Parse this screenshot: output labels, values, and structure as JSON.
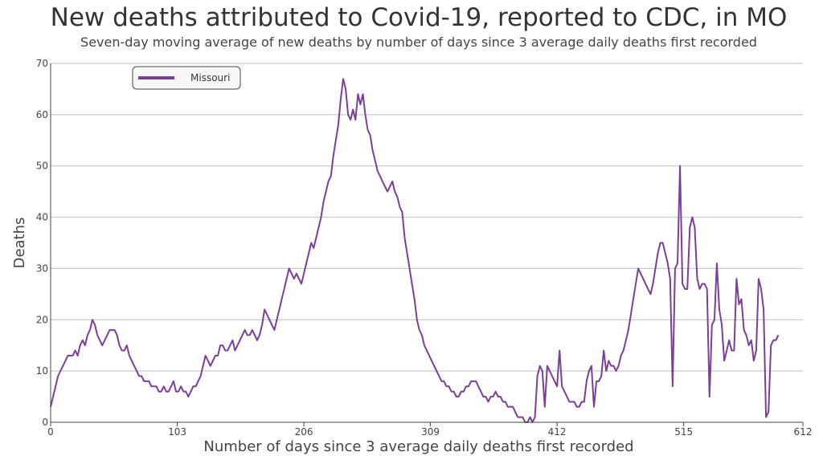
{
  "colors": {
    "series": "#7b3f98",
    "grid": "#bdbdbd",
    "axis": "#444444"
  },
  "chart_data": {
    "type": "line",
    "title": "New deaths attributed to Covid-19, reported to CDC, in MO",
    "subtitle": "Seven-day moving average of new deaths by number of days since 3 average daily deaths first recorded",
    "xlabel": "Number of days since 3 average daily deaths first recorded",
    "ylabel": "Deaths",
    "xlim": [
      0,
      612
    ],
    "ylim": [
      0,
      70
    ],
    "x_ticks": [
      0,
      103,
      206,
      309,
      412,
      515,
      612
    ],
    "y_ticks": [
      0,
      10,
      20,
      30,
      40,
      50,
      60,
      70
    ],
    "grid": true,
    "legend_position": "top-left",
    "series": [
      {
        "name": "Missouri",
        "points": [
          [
            0,
            3
          ],
          [
            2,
            5
          ],
          [
            4,
            7
          ],
          [
            6,
            9
          ],
          [
            8,
            10
          ],
          [
            10,
            11
          ],
          [
            12,
            12
          ],
          [
            14,
            13
          ],
          [
            16,
            13
          ],
          [
            18,
            13
          ],
          [
            20,
            14
          ],
          [
            22,
            13
          ],
          [
            24,
            15
          ],
          [
            26,
            16
          ],
          [
            28,
            15
          ],
          [
            30,
            17
          ],
          [
            32,
            18
          ],
          [
            34,
            20
          ],
          [
            36,
            19
          ],
          [
            38,
            17
          ],
          [
            40,
            16
          ],
          [
            42,
            15
          ],
          [
            44,
            16
          ],
          [
            46,
            17
          ],
          [
            48,
            18
          ],
          [
            50,
            18
          ],
          [
            52,
            18
          ],
          [
            54,
            17
          ],
          [
            56,
            15
          ],
          [
            58,
            14
          ],
          [
            60,
            14
          ],
          [
            62,
            15
          ],
          [
            64,
            13
          ],
          [
            66,
            12
          ],
          [
            68,
            11
          ],
          [
            70,
            10
          ],
          [
            72,
            9
          ],
          [
            74,
            9
          ],
          [
            76,
            8
          ],
          [
            78,
            8
          ],
          [
            80,
            8
          ],
          [
            82,
            7
          ],
          [
            84,
            7
          ],
          [
            86,
            7
          ],
          [
            88,
            6
          ],
          [
            90,
            6
          ],
          [
            92,
            7
          ],
          [
            94,
            6
          ],
          [
            96,
            6
          ],
          [
            98,
            7
          ],
          [
            100,
            8
          ],
          [
            102,
            6
          ],
          [
            104,
            6
          ],
          [
            106,
            7
          ],
          [
            108,
            6
          ],
          [
            110,
            6
          ],
          [
            112,
            5
          ],
          [
            114,
            6
          ],
          [
            116,
            7
          ],
          [
            118,
            7
          ],
          [
            120,
            8
          ],
          [
            122,
            9
          ],
          [
            124,
            11
          ],
          [
            126,
            13
          ],
          [
            128,
            12
          ],
          [
            130,
            11
          ],
          [
            132,
            12
          ],
          [
            134,
            13
          ],
          [
            136,
            13
          ],
          [
            138,
            15
          ],
          [
            140,
            15
          ],
          [
            142,
            14
          ],
          [
            144,
            14
          ],
          [
            146,
            15
          ],
          [
            148,
            16
          ],
          [
            150,
            14
          ],
          [
            152,
            15
          ],
          [
            154,
            16
          ],
          [
            156,
            17
          ],
          [
            158,
            18
          ],
          [
            160,
            17
          ],
          [
            162,
            17
          ],
          [
            164,
            18
          ],
          [
            166,
            17
          ],
          [
            168,
            16
          ],
          [
            170,
            17
          ],
          [
            172,
            19
          ],
          [
            174,
            22
          ],
          [
            176,
            21
          ],
          [
            178,
            20
          ],
          [
            180,
            19
          ],
          [
            182,
            18
          ],
          [
            184,
            20
          ],
          [
            186,
            22
          ],
          [
            188,
            24
          ],
          [
            190,
            26
          ],
          [
            192,
            28
          ],
          [
            194,
            30
          ],
          [
            196,
            29
          ],
          [
            198,
            28
          ],
          [
            200,
            29
          ],
          [
            202,
            28
          ],
          [
            204,
            27
          ],
          [
            206,
            29
          ],
          [
            208,
            31
          ],
          [
            210,
            33
          ],
          [
            212,
            35
          ],
          [
            214,
            34
          ],
          [
            216,
            36
          ],
          [
            218,
            38
          ],
          [
            220,
            40
          ],
          [
            222,
            43
          ],
          [
            224,
            45
          ],
          [
            226,
            47
          ],
          [
            228,
            48
          ],
          [
            230,
            52
          ],
          [
            232,
            55
          ],
          [
            234,
            58
          ],
          [
            236,
            63
          ],
          [
            238,
            67
          ],
          [
            240,
            65
          ],
          [
            242,
            60
          ],
          [
            244,
            59
          ],
          [
            246,
            61
          ],
          [
            248,
            59
          ],
          [
            250,
            64
          ],
          [
            252,
            62
          ],
          [
            254,
            64
          ],
          [
            256,
            60
          ],
          [
            258,
            57
          ],
          [
            260,
            56
          ],
          [
            262,
            53
          ],
          [
            264,
            51
          ],
          [
            266,
            49
          ],
          [
            268,
            48
          ],
          [
            270,
            47
          ],
          [
            272,
            46
          ],
          [
            274,
            45
          ],
          [
            276,
            46
          ],
          [
            278,
            47
          ],
          [
            280,
            45
          ],
          [
            282,
            44
          ],
          [
            284,
            42
          ],
          [
            286,
            41
          ],
          [
            288,
            36
          ],
          [
            290,
            33
          ],
          [
            292,
            30
          ],
          [
            294,
            27
          ],
          [
            296,
            24
          ],
          [
            298,
            20
          ],
          [
            300,
            18
          ],
          [
            302,
            17
          ],
          [
            304,
            15
          ],
          [
            306,
            14
          ],
          [
            308,
            13
          ],
          [
            310,
            12
          ],
          [
            312,
            11
          ],
          [
            314,
            10
          ],
          [
            316,
            9
          ],
          [
            318,
            8
          ],
          [
            320,
            8
          ],
          [
            322,
            7
          ],
          [
            324,
            7
          ],
          [
            326,
            6
          ],
          [
            328,
            6
          ],
          [
            330,
            5
          ],
          [
            332,
            5
          ],
          [
            334,
            6
          ],
          [
            336,
            6
          ],
          [
            338,
            7
          ],
          [
            340,
            7
          ],
          [
            342,
            8
          ],
          [
            344,
            8
          ],
          [
            346,
            8
          ],
          [
            348,
            7
          ],
          [
            350,
            6
          ],
          [
            352,
            5
          ],
          [
            354,
            5
          ],
          [
            356,
            4
          ],
          [
            358,
            5
          ],
          [
            360,
            5
          ],
          [
            362,
            6
          ],
          [
            364,
            5
          ],
          [
            366,
            5
          ],
          [
            368,
            4
          ],
          [
            370,
            4
          ],
          [
            372,
            3
          ],
          [
            374,
            3
          ],
          [
            376,
            3
          ],
          [
            378,
            2
          ],
          [
            380,
            1
          ],
          [
            382,
            1
          ],
          [
            384,
            1
          ],
          [
            386,
            0
          ],
          [
            388,
            0
          ],
          [
            390,
            1
          ],
          [
            392,
            0
          ],
          [
            394,
            1
          ],
          [
            396,
            9
          ],
          [
            398,
            11
          ],
          [
            400,
            10
          ],
          [
            402,
            3
          ],
          [
            404,
            11
          ],
          [
            406,
            10
          ],
          [
            408,
            9
          ],
          [
            410,
            8
          ],
          [
            412,
            7
          ],
          [
            414,
            14
          ],
          [
            416,
            7
          ],
          [
            418,
            6
          ],
          [
            420,
            5
          ],
          [
            422,
            4
          ],
          [
            424,
            4
          ],
          [
            426,
            4
          ],
          [
            428,
            3
          ],
          [
            430,
            3
          ],
          [
            432,
            4
          ],
          [
            434,
            4
          ],
          [
            436,
            8
          ],
          [
            438,
            10
          ],
          [
            440,
            11
          ],
          [
            442,
            3
          ],
          [
            444,
            8
          ],
          [
            446,
            8
          ],
          [
            448,
            9
          ],
          [
            450,
            14
          ],
          [
            452,
            10
          ],
          [
            454,
            12
          ],
          [
            456,
            11
          ],
          [
            458,
            11
          ],
          [
            460,
            10
          ],
          [
            462,
            11
          ],
          [
            464,
            13
          ],
          [
            466,
            14
          ],
          [
            468,
            16
          ],
          [
            470,
            18
          ],
          [
            472,
            21
          ],
          [
            474,
            24
          ],
          [
            476,
            27
          ],
          [
            478,
            30
          ],
          [
            480,
            29
          ],
          [
            482,
            28
          ],
          [
            484,
            27
          ],
          [
            486,
            26
          ],
          [
            488,
            25
          ],
          [
            490,
            27
          ],
          [
            492,
            30
          ],
          [
            494,
            33
          ],
          [
            496,
            35
          ],
          [
            498,
            35
          ],
          [
            500,
            33
          ],
          [
            502,
            31
          ],
          [
            504,
            28
          ],
          [
            506,
            7
          ],
          [
            508,
            30
          ],
          [
            510,
            31
          ],
          [
            512,
            50
          ],
          [
            514,
            27
          ],
          [
            516,
            26
          ],
          [
            518,
            26
          ],
          [
            520,
            38
          ],
          [
            522,
            40
          ],
          [
            524,
            38
          ],
          [
            526,
            28
          ],
          [
            528,
            26
          ],
          [
            530,
            27
          ],
          [
            532,
            27
          ],
          [
            534,
            26
          ],
          [
            536,
            5
          ],
          [
            538,
            19
          ],
          [
            540,
            20
          ],
          [
            542,
            31
          ],
          [
            544,
            22
          ],
          [
            546,
            19
          ],
          [
            548,
            12
          ],
          [
            550,
            14
          ],
          [
            552,
            16
          ],
          [
            554,
            14
          ],
          [
            556,
            14
          ],
          [
            558,
            28
          ],
          [
            560,
            23
          ],
          [
            562,
            24
          ],
          [
            564,
            18
          ],
          [
            566,
            17
          ],
          [
            568,
            15
          ],
          [
            570,
            16
          ],
          [
            572,
            12
          ],
          [
            574,
            14
          ],
          [
            576,
            28
          ],
          [
            578,
            26
          ],
          [
            580,
            22
          ],
          [
            582,
            1
          ],
          [
            584,
            2
          ],
          [
            586,
            15
          ],
          [
            588,
            16
          ],
          [
            590,
            16
          ],
          [
            592,
            17
          ]
        ]
      }
    ]
  }
}
